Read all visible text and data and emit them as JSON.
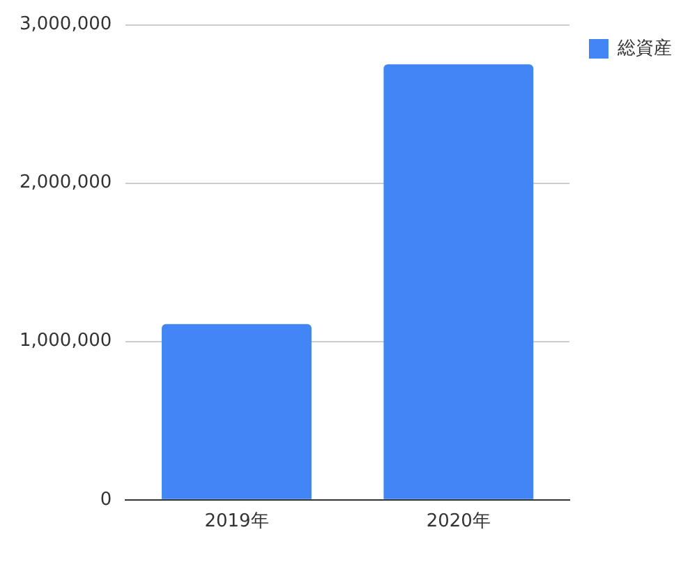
{
  "chart_data": {
    "type": "bar",
    "categories": [
      "2019年",
      "2020年"
    ],
    "series": [
      {
        "name": "総資産",
        "color": "#4285f4",
        "values": [
          1110000,
          2750000
        ]
      }
    ],
    "ylim": [
      0,
      3000000
    ],
    "yticks": [
      {
        "value": 0,
        "label": "0"
      },
      {
        "value": 1000000,
        "label": "1,000,000"
      },
      {
        "value": 2000000,
        "label": "2,000,000"
      },
      {
        "value": 3000000,
        "label": "3,000,000"
      }
    ],
    "grid": "y",
    "legend": "top right"
  }
}
